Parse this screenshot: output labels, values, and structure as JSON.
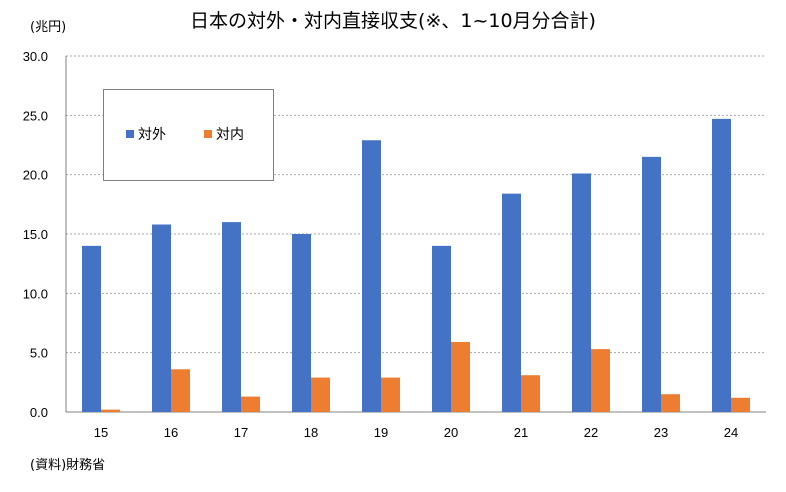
{
  "chart_data": {
    "type": "bar",
    "title": "日本の対外・対内直接収支(※、1~10月分合計)",
    "unit_label": "(兆円)",
    "source": "(資料)財務省",
    "categories": [
      "15",
      "16",
      "17",
      "18",
      "19",
      "20",
      "21",
      "22",
      "23",
      "24"
    ],
    "series": [
      {
        "name": "対外",
        "color": "#4472C4",
        "values": [
          14.0,
          15.8,
          16.0,
          15.0,
          22.9,
          14.0,
          18.4,
          20.1,
          21.5,
          24.7
        ]
      },
      {
        "name": "対内",
        "color": "#ED7D31",
        "values": [
          0.2,
          3.6,
          1.3,
          2.9,
          2.9,
          5.9,
          3.1,
          5.3,
          1.5,
          1.2
        ]
      }
    ],
    "yticks": [
      "0.0",
      "5.0",
      "10.0",
      "15.0",
      "20.0",
      "25.0",
      "30.0"
    ],
    "ylim": [
      0,
      30
    ],
    "legend_position": "upper-left inside",
    "grid": "horizontal dashed"
  }
}
